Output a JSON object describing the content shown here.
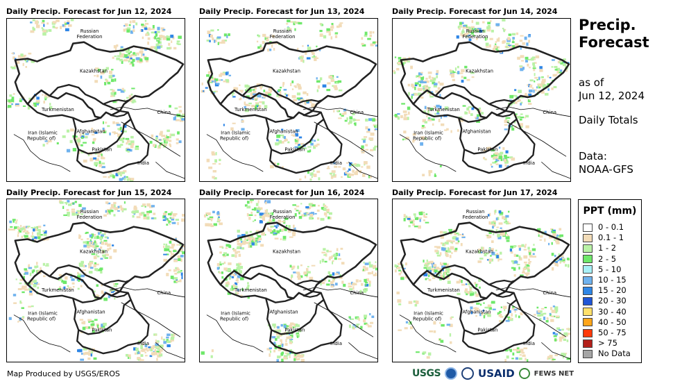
{
  "panels": [
    {
      "title": "Daily Precip. Forecast for Jun 12, 2024"
    },
    {
      "title": "Daily Precip. Forecast for Jun 13, 2024"
    },
    {
      "title": "Daily Precip. Forecast for Jun 14, 2024"
    },
    {
      "title": "Daily Precip. Forecast for Jun 15, 2024"
    },
    {
      "title": "Daily Precip. Forecast for Jun 16, 2024"
    },
    {
      "title": "Daily Precip. Forecast for Jun 17, 2024"
    }
  ],
  "map_labels": {
    "russia_1": "Russian",
    "russia_2": "Federation",
    "kazakhstan": "Kazakhstan",
    "turkmenistan": "Turkmenistan",
    "china": "China",
    "iran_1": "Iran  (Islamic",
    "iran_2": "Republic of)",
    "afghanistan": "Afghanistan",
    "pakistan": "Pakistan",
    "india": "India"
  },
  "sidebar": {
    "title_line1": "Precip.",
    "title_line2": "Forecast",
    "asof_line1": "as of",
    "asof_line2": "Jun 12, 2024",
    "totals": "Daily Totals",
    "data_line1": "Data:",
    "data_line2": "NOAA-GFS"
  },
  "legend": {
    "title": "PPT (mm)",
    "items": [
      {
        "label": "0 - 0.1",
        "color": "#ffffff"
      },
      {
        "label": "0.1 - 1",
        "color": "#f2dcb8"
      },
      {
        "label": "1 - 2",
        "color": "#b9f2a6"
      },
      {
        "label": "2 - 5",
        "color": "#6fe86a"
      },
      {
        "label": "5 - 10",
        "color": "#a8f0f7"
      },
      {
        "label": "10 - 15",
        "color": "#6fb2ee"
      },
      {
        "label": "15 - 20",
        "color": "#2f86e6"
      },
      {
        "label": "20 - 30",
        "color": "#1f55d6"
      },
      {
        "label": "30 - 40",
        "color": "#ffe06a"
      },
      {
        "label": "40 - 50",
        "color": "#ffa51a"
      },
      {
        "label": "50 - 75",
        "color": "#ff3a0a"
      },
      {
        "label": "> 75",
        "color": "#b3201a"
      },
      {
        "label": "No Data",
        "color": "#a6a6a6"
      }
    ]
  },
  "footer": {
    "credit": "Map Produced by USGS/EROS",
    "logo_usgs": "USGS",
    "logo_usaid": "USAID",
    "logo_fews": "FEWS NET"
  }
}
